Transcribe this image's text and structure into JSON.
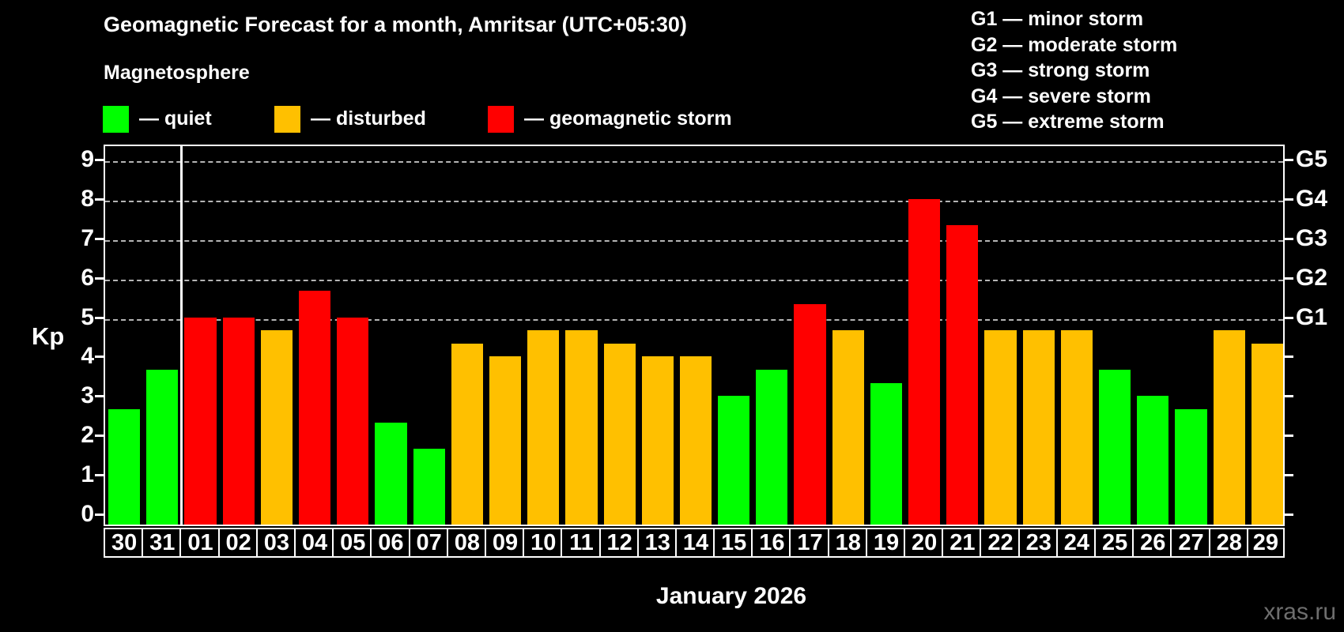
{
  "header": {
    "title": "Geomagnetic Forecast for a month, Amritsar (UTC+05:30)"
  },
  "legend": {
    "title": "Magnetosphere",
    "items": [
      {
        "label": "— quiet",
        "status": "quiet"
      },
      {
        "label": "— disturbed",
        "status": "disturbed"
      },
      {
        "label": "— geomagnetic storm",
        "status": "storm"
      }
    ]
  },
  "g_legend": {
    "items": [
      "G1 — minor storm",
      "G2 — moderate storm",
      "G3 — strong storm",
      "G4 — severe storm",
      "G5 — extreme storm"
    ]
  },
  "colors": {
    "quiet": "#00ff00",
    "disturbed": "#ffc000",
    "storm": "#ff0000",
    "background": "#000000",
    "text": "#ffffff",
    "grid": "#b5b5b5",
    "watermark": "#6e6e6e"
  },
  "axes": {
    "ylabel": "Kp",
    "y_ticks": [
      0,
      1,
      2,
      3,
      4,
      5,
      6,
      7,
      8,
      9
    ],
    "right_labels": [
      {
        "kp": 5,
        "label": "G1"
      },
      {
        "kp": 6,
        "label": "G2"
      },
      {
        "kp": 7,
        "label": "G3"
      },
      {
        "kp": 8,
        "label": "G4"
      },
      {
        "kp": 9,
        "label": "G5"
      }
    ],
    "xlabel": "January 2026"
  },
  "watermark": "xras.ru",
  "chart_data": {
    "type": "bar",
    "title": "Geomagnetic Forecast for a month, Amritsar (UTC+05:30)",
    "xlabel": "January 2026",
    "ylabel": "Kp",
    "ylim": [
      -0.3,
      9.4
    ],
    "grid": "dashed horizontal at Kp 5-9",
    "legend_position": "top-left",
    "categories": [
      "30",
      "31",
      "01",
      "02",
      "03",
      "04",
      "05",
      "06",
      "07",
      "08",
      "09",
      "10",
      "11",
      "12",
      "13",
      "14",
      "15",
      "16",
      "17",
      "18",
      "19",
      "20",
      "21",
      "22",
      "23",
      "24",
      "25",
      "26",
      "27",
      "28",
      "29"
    ],
    "values": [
      2.67,
      3.67,
      5.0,
      5.0,
      4.67,
      5.67,
      5.0,
      2.33,
      1.67,
      4.33,
      4.0,
      4.67,
      4.67,
      4.33,
      4.0,
      4.0,
      3.0,
      3.67,
      5.33,
      4.67,
      3.33,
      8.0,
      7.33,
      4.67,
      4.67,
      4.67,
      3.67,
      3.0,
      2.67,
      4.67,
      4.33
    ],
    "statuses": [
      "quiet",
      "quiet",
      "storm",
      "storm",
      "disturbed",
      "storm",
      "storm",
      "quiet",
      "quiet",
      "disturbed",
      "disturbed",
      "disturbed",
      "disturbed",
      "disturbed",
      "disturbed",
      "disturbed",
      "quiet",
      "quiet",
      "storm",
      "disturbed",
      "quiet",
      "storm",
      "storm",
      "disturbed",
      "disturbed",
      "disturbed",
      "quiet",
      "quiet",
      "quiet",
      "disturbed",
      "disturbed"
    ],
    "month_separator_after_category": "31"
  }
}
